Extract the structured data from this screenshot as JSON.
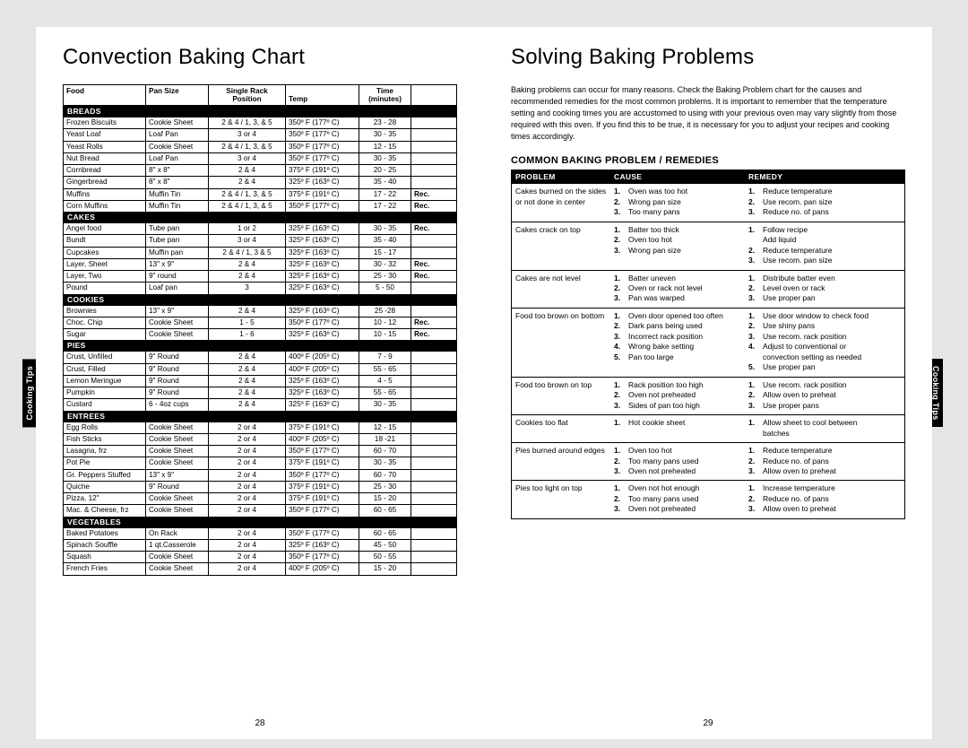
{
  "left_title": "Convection Baking Chart",
  "right_title": "Solving Baking Problems",
  "intro_text": "Baking problems can occur for many reasons. Check the Baking Problem chart for the causes and recommended remedies for the most common problems. It is important to remember that the temperature setting and cooking times you are accustomed to using with your previous oven may vary slightly from those required with this oven. If you find this to be true, it is necessary for you to adjust your recipes and cooking times accordingly.",
  "sub_heading": "COMMON BAKING PROBLEM / REMEDIES",
  "conv_headers": {
    "food": "Food",
    "pan": "Pan Size",
    "single_top": "Single Rack",
    "pos": "Position",
    "temp": "Temp",
    "time_top": "Time",
    "minutes": "(minutes)"
  },
  "side_tab": "Cooking Tips",
  "page_left": "28",
  "page_right": "29",
  "conv_sections": [
    {
      "name": "BREADS",
      "rows": [
        [
          "Frozen Biscuits",
          "Cookie Sheet",
          "2 & 4 / 1, 3, & 5",
          "350º F (177º C)",
          "23 - 28",
          ""
        ],
        [
          "Yeast Loaf",
          "Loaf Pan",
          "3 or 4",
          "350º F (177º C)",
          "30 - 35",
          ""
        ],
        [
          "Yeast Rolls",
          "Cookie Sheet",
          "2 & 4 / 1, 3, & 5",
          "350º F (177º C)",
          "12 - 15",
          ""
        ],
        [
          "Nut Bread",
          "Loaf Pan",
          "3 or 4",
          "350º F (177º C)",
          "30 - 35",
          ""
        ],
        [
          "Cornbread",
          "8\" x 8\"",
          "2 & 4",
          "375º F (191º C)",
          "20 - 25",
          ""
        ],
        [
          "Gingerbread",
          "8\" x 8\"",
          "2 & 4",
          "325º F (163º C)",
          "35 - 40",
          ""
        ],
        [
          "Muffins",
          "Muffin Tin",
          "2 & 4 / 1, 3, & 5",
          "375º F (191º C)",
          "17 - 22",
          "Rec."
        ],
        [
          "Corn Muffins",
          "Muffin Tin",
          "2 & 4 / 1, 3, & 5",
          "350º F (177º C)",
          "17 - 22",
          "Rec."
        ]
      ]
    },
    {
      "name": "CAKES",
      "rows": [
        [
          "Angel food",
          "Tube pan",
          "1 or 2",
          "325º F (163º C)",
          "30 - 35",
          "Rec."
        ],
        [
          "Bundt",
          "Tube pan",
          "3 or 4",
          "325º F (163º C)",
          "35 - 40",
          ""
        ],
        [
          "Cupcakes",
          "Muffin pan",
          "2 & 4 / 1, 3 & 5",
          "325º F (163º C)",
          "15 - 17",
          ""
        ],
        [
          "Layer, Sheet",
          "13\" x 9\"",
          "2 & 4",
          "325º F (163º C)",
          "30 - 32",
          "Rec."
        ],
        [
          "Layer, Two",
          "9\" round",
          "2 & 4",
          "325º F (163º C)",
          "25 - 30",
          "Rec."
        ],
        [
          "Pound",
          "Loaf pan",
          "3",
          "325º F (163º C)",
          "5 - 50",
          ""
        ]
      ]
    },
    {
      "name": "COOKIES",
      "rows": [
        [
          "Brownies",
          "13\" x 9\"",
          "2 & 4",
          "325º F (163º C)",
          "25 -28",
          ""
        ],
        [
          "Choc. Chip",
          "Cookie Sheet",
          "1 - 5",
          "350º F (177º C)",
          "10 - 12",
          "Rec."
        ],
        [
          "Sugar",
          "Cookie Sheet",
          "1 - 6",
          "325º F (163º C)",
          "10 - 15",
          "Rec."
        ]
      ]
    },
    {
      "name": "PIES",
      "rows": [
        [
          "Crust, Unfilled",
          "9\" Round",
          "2 & 4",
          "400º F (205º C)",
          "7 - 9",
          ""
        ],
        [
          "Crust, Filled",
          "9\" Round",
          "2 & 4",
          "400º F (205º C)",
          "55 - 65",
          ""
        ],
        [
          "Lemon Meringue",
          "9\" Round",
          "2 & 4",
          "325º F (163º C)",
          "4 - 5",
          ""
        ],
        [
          "Pumpkin",
          "9\" Round",
          "2 & 4",
          "325º F (163º C)",
          "55 - 65",
          ""
        ],
        [
          "Custard",
          "6 - 4oz cups",
          "2 & 4",
          "325º F (163º C)",
          "30 - 35",
          ""
        ]
      ]
    },
    {
      "name": "ENTREES",
      "rows": [
        [
          "Egg Rolls",
          "Cookie Sheet",
          "2 or 4",
          "375º F (191º C)",
          "12 - 15",
          ""
        ],
        [
          "Fish Sticks",
          "Cookie Sheet",
          "2 or 4",
          "400º F (205º C)",
          "18 -21",
          ""
        ],
        [
          "Lasagna, frz",
          "Cookie Sheet",
          "2 or 4",
          "350º F (177º C)",
          "60 - 70",
          ""
        ],
        [
          "Pot Pie",
          "Cookie Sheet",
          "2 or 4",
          "375º F (191º C)",
          "30 - 35",
          ""
        ],
        [
          "Gr. Peppers Stuffed",
          "13\" x 9\"",
          "2 or 4",
          "350º F (177º C)",
          "60 - 70",
          ""
        ],
        [
          "Quiche",
          "9\" Round",
          "2 or 4",
          "375º F (191º C)",
          "25 - 30",
          ""
        ],
        [
          "Pizza, 12\"",
          "Cookie Sheet",
          "2 or 4",
          "375º F (191º C)",
          "15 - 20",
          ""
        ],
        [
          "Mac. & Cheese, frz",
          "Cookie Sheet",
          "2 or 4",
          "350º F (177º C)",
          "60 - 65",
          ""
        ]
      ]
    },
    {
      "name": "VEGETABLES",
      "rows": [
        [
          "Baked Potatoes",
          "On Rack",
          "2 or 4",
          "350º F (177º C)",
          "60 - 65",
          ""
        ],
        [
          "Spinach Souffle",
          "1 qt.Casserole",
          "2 or 4",
          "325º F (163º C)",
          "45 - 50",
          ""
        ],
        [
          "Squash",
          "Cookie Sheet",
          "2 or 4",
          "350º F (177º C)",
          "50 - 55",
          ""
        ],
        [
          "French Fries",
          "Cookie Sheet",
          "2 or 4",
          "400º F (205º C)",
          "15 - 20",
          ""
        ]
      ]
    }
  ],
  "prob_headers": {
    "p": "PROBLEM",
    "c": "CAUSE",
    "r": "REMEDY"
  },
  "problems": [
    {
      "problem": "Cakes burned on the sides or not done in center",
      "causes": [
        "Oven was too hot",
        "Wrong pan size",
        "Too many pans"
      ],
      "remedies": [
        "Reduce temperature",
        "Use recom. pan size",
        "Reduce no. of pans"
      ]
    },
    {
      "problem": "Cakes crack on top",
      "causes": [
        "Batter too thick",
        "Oven too hot",
        "Wrong pan size"
      ],
      "remedies": [
        "Follow recipe\nAdd liquid",
        "Reduce temperature",
        "Use recom. pan size"
      ]
    },
    {
      "problem": "Cakes are not level",
      "causes": [
        "Batter uneven",
        "Oven or rack not level",
        "Pan was warped"
      ],
      "remedies": [
        "Distribute batter even",
        "Level oven or rack",
        "Use proper pan"
      ]
    },
    {
      "problem": "Food too brown on bottom",
      "causes": [
        "Oven door opened too often",
        "Dark pans being used",
        "Incorrect rack position",
        "Wrong bake setting",
        "Pan too large"
      ],
      "remedies": [
        "Use door window to check food",
        "Use shiny pans",
        "Use recom. rack position",
        "Adjust to conventional or convection setting as needed",
        "Use proper pan"
      ]
    },
    {
      "problem": "Food too brown on top",
      "causes": [
        "Rack position too high",
        "Oven not preheated",
        "Sides of pan too high"
      ],
      "remedies": [
        "Use recom. rack position",
        "Allow oven to preheat",
        "Use proper pans"
      ]
    },
    {
      "problem": "Cookies too flat",
      "causes": [
        "Hot cookie sheet"
      ],
      "remedies": [
        "Allow sheet to cool between batches"
      ]
    },
    {
      "problem": "Pies burned around edges",
      "causes": [
        "Oven too hot",
        "Too many pans used",
        "Oven not preheated"
      ],
      "remedies": [
        "Reduce temperature",
        "Reduce no. of pans",
        "Allow oven to preheat"
      ]
    },
    {
      "problem": "Pies too light on top",
      "causes": [
        "Oven not hot enough",
        "Too many pans used",
        "Oven not preheated"
      ],
      "remedies": [
        "Increase temperature",
        "Reduce no. of pans",
        "Allow oven to preheat"
      ]
    }
  ]
}
